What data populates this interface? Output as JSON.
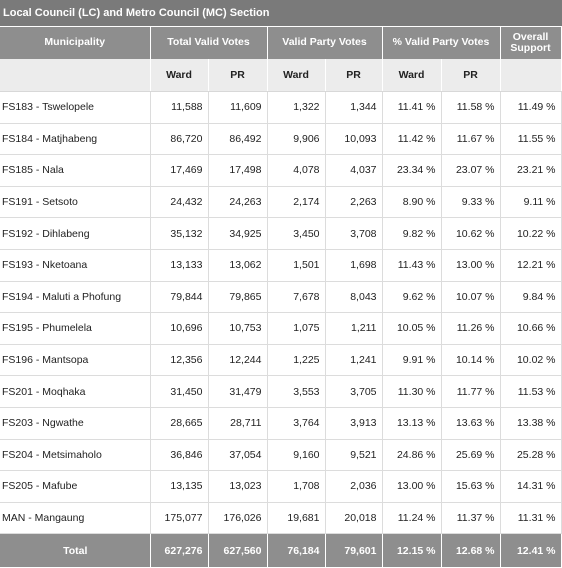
{
  "section_title": "Local Council (LC) and Metro Council (MC) Section",
  "headers": {
    "municipality": "Municipality",
    "total_valid_votes": "Total Valid Votes",
    "valid_party_votes": "Valid Party Votes",
    "pct_valid_party_votes": "% Valid Party Votes",
    "overall_support": "Overall Support"
  },
  "subheaders": {
    "ward": "Ward",
    "pr": "PR"
  },
  "rows": [
    [
      "FS183 - Tswelopele",
      "11,588",
      "11,609",
      "1,322",
      "1,344",
      "11.41 %",
      "11.58 %",
      "11.49 %"
    ],
    [
      "FS184 - Matjhabeng",
      "86,720",
      "86,492",
      "9,906",
      "10,093",
      "11.42 %",
      "11.67 %",
      "11.55 %"
    ],
    [
      "FS185 - Nala",
      "17,469",
      "17,498",
      "4,078",
      "4,037",
      "23.34 %",
      "23.07 %",
      "23.21 %"
    ],
    [
      "FS191 - Setsoto",
      "24,432",
      "24,263",
      "2,174",
      "2,263",
      "8.90 %",
      "9.33 %",
      "9.11 %"
    ],
    [
      "FS192 - Dihlabeng",
      "35,132",
      "34,925",
      "3,450",
      "3,708",
      "9.82 %",
      "10.62 %",
      "10.22 %"
    ],
    [
      "FS193 - Nketoana",
      "13,133",
      "13,062",
      "1,501",
      "1,698",
      "11.43 %",
      "13.00 %",
      "12.21 %"
    ],
    [
      "FS194 - Maluti a Phofung",
      "79,844",
      "79,865",
      "7,678",
      "8,043",
      "9.62 %",
      "10.07 %",
      "9.84 %"
    ],
    [
      "FS195 - Phumelela",
      "10,696",
      "10,753",
      "1,075",
      "1,211",
      "10.05 %",
      "11.26 %",
      "10.66 %"
    ],
    [
      "FS196 - Mantsopa",
      "12,356",
      "12,244",
      "1,225",
      "1,241",
      "9.91 %",
      "10.14 %",
      "10.02 %"
    ],
    [
      "FS201 - Moqhaka",
      "31,450",
      "31,479",
      "3,553",
      "3,705",
      "11.30 %",
      "11.77 %",
      "11.53 %"
    ],
    [
      "FS203 - Ngwathe",
      "28,665",
      "28,711",
      "3,764",
      "3,913",
      "13.13 %",
      "13.63 %",
      "13.38 %"
    ],
    [
      "FS204 - Metsimaholo",
      "36,846",
      "37,054",
      "9,160",
      "9,521",
      "24.86 %",
      "25.69 %",
      "25.28 %"
    ],
    [
      "FS205 - Mafube",
      "13,135",
      "13,023",
      "1,708",
      "2,036",
      "13.00 %",
      "15.63 %",
      "14.31 %"
    ],
    [
      "MAN - Mangaung",
      "175,077",
      "176,026",
      "19,681",
      "20,018",
      "11.24 %",
      "11.37 %",
      "11.31 %"
    ]
  ],
  "total": [
    "Total",
    "627,276",
    "627,560",
    "76,184",
    "79,601",
    "12.15 %",
    "12.68 %",
    "12.41 %"
  ],
  "colors": {
    "header_bg": "#8e8e8e",
    "title_bg": "#7a7a7a",
    "subheader_bg": "#ececec"
  }
}
